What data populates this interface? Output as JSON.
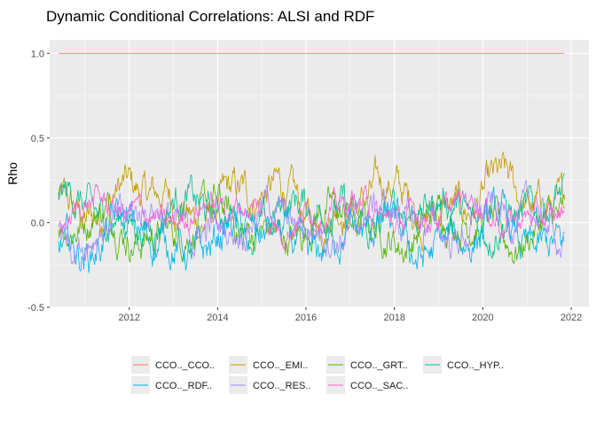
{
  "chart_data": {
    "type": "line",
    "title": "Dynamic Conditional Correlations: ALSI and RDF",
    "xlabel": "",
    "ylabel": "Rho",
    "xlim": [
      2010.2,
      2022.4
    ],
    "ylim": [
      -0.5,
      1.08
    ],
    "x_ticks": [
      {
        "value": 2012,
        "label": "2012"
      },
      {
        "value": 2014,
        "label": "2014"
      },
      {
        "value": 2016,
        "label": "2016"
      },
      {
        "value": 2018,
        "label": "2018"
      },
      {
        "value": 2020,
        "label": "2020"
      },
      {
        "value": 2022,
        "label": "2022"
      }
    ],
    "y_ticks": [
      {
        "value": -0.5,
        "label": "-0.5"
      },
      {
        "value": 0.0,
        "label": "0.0"
      },
      {
        "value": 0.5,
        "label": "0.5"
      },
      {
        "value": 1.0,
        "label": "1.0"
      }
    ],
    "grid": true,
    "legend_position": "bottom",
    "x_range": [
      2010.4,
      2021.85
    ],
    "series": [
      {
        "name": "CCO.._CCO..",
        "color": "#F8766D",
        "constant": 1.0
      },
      {
        "name": "CCO.._EMI..",
        "color": "#C49A00",
        "mean": 0.12,
        "amplitude": 0.15
      },
      {
        "name": "CCO.._GRT..",
        "color": "#53B400",
        "mean": -0.02,
        "amplitude": 0.14
      },
      {
        "name": "CCO.._HYP..",
        "color": "#00C094",
        "mean": 0.05,
        "amplitude": 0.14
      },
      {
        "name": "CCO.._RDF..",
        "color": "#00B6EB",
        "mean": -0.1,
        "amplitude": 0.15
      },
      {
        "name": "CCO.._RES..",
        "color": "#A58AFF",
        "mean": 0.0,
        "amplitude": 0.13
      },
      {
        "name": "CCO.._SAC..",
        "color": "#FB61D7",
        "mean": 0.06,
        "amplitude": 0.1
      }
    ]
  }
}
